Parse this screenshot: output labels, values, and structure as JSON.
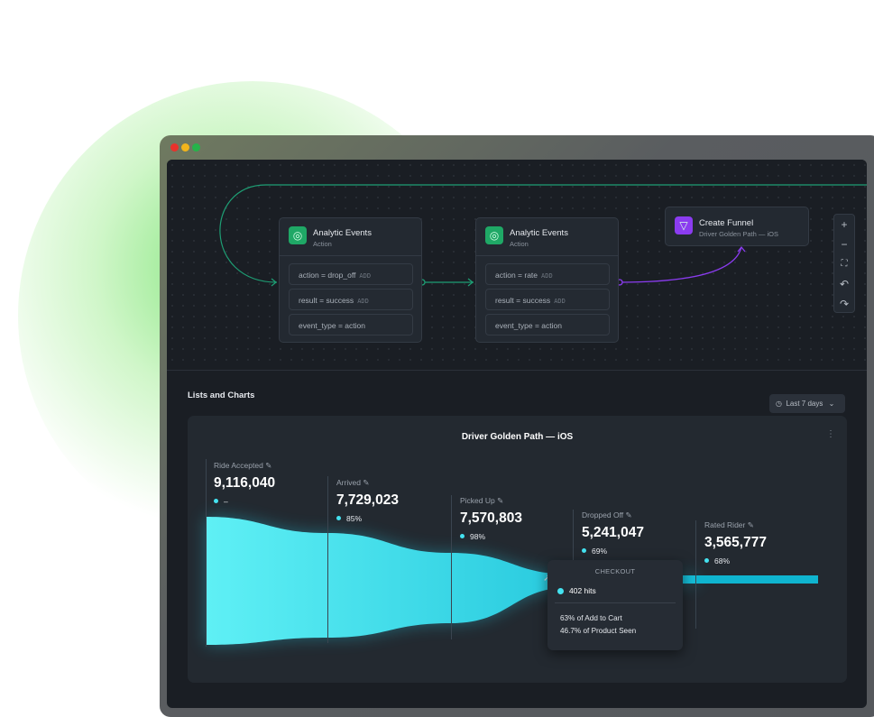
{
  "window": {
    "controls": [
      "close",
      "minimize",
      "maximize"
    ],
    "colors": {
      "close": "#e8322b",
      "minimize": "#f2b51b",
      "maximize": "#26b34a"
    }
  },
  "flow": {
    "nodes": [
      {
        "title": "Analytic Events",
        "subtitle": "Action",
        "icon": "target-icon",
        "conditions": [
          {
            "text": "action = drop_off",
            "add": "ADD"
          },
          {
            "text": "result = success",
            "add": "ADD"
          },
          {
            "text": "event_type = action",
            "add": ""
          }
        ]
      },
      {
        "title": "Analytic Events",
        "subtitle": "Action",
        "icon": "target-icon",
        "conditions": [
          {
            "text": "action = rate",
            "add": "ADD"
          },
          {
            "text": "result = success",
            "add": "ADD"
          },
          {
            "text": "event_type = action",
            "add": ""
          }
        ]
      }
    ],
    "funnel_node": {
      "title": "Create Funnel",
      "subtitle": "Driver Golden Path — iOS",
      "icon": "funnel-icon",
      "color": "#8b3cf0"
    },
    "toolbar": [
      "zoom-in",
      "zoom-out",
      "fit-screen",
      "undo",
      "redo"
    ],
    "edge_colors": {
      "green": "#1e9e74",
      "purple": "#8b3cf0"
    }
  },
  "section": {
    "title": "Lists and Charts",
    "range": "Last 7 days"
  },
  "funnel": {
    "title": "Driver Golden Path — iOS",
    "accent": "#22d3ee",
    "stages": [
      {
        "label": "Ride Accepted",
        "value": "9,116,040",
        "pct": "–"
      },
      {
        "label": "Arrived",
        "value": "7,729,023",
        "pct": "85%"
      },
      {
        "label": "Picked Up",
        "value": "7,570,803",
        "pct": "98%"
      },
      {
        "label": "Dropped Off",
        "value": "5,241,047",
        "pct": "69%"
      },
      {
        "label": "Rated Rider",
        "value": "3,565,777",
        "pct": "68%"
      }
    ],
    "tooltip": {
      "title": "CHECKOUT",
      "hits": "402 hits",
      "line1": "63% of Add to Cart",
      "line2": "46.7% of Product Seen"
    }
  }
}
